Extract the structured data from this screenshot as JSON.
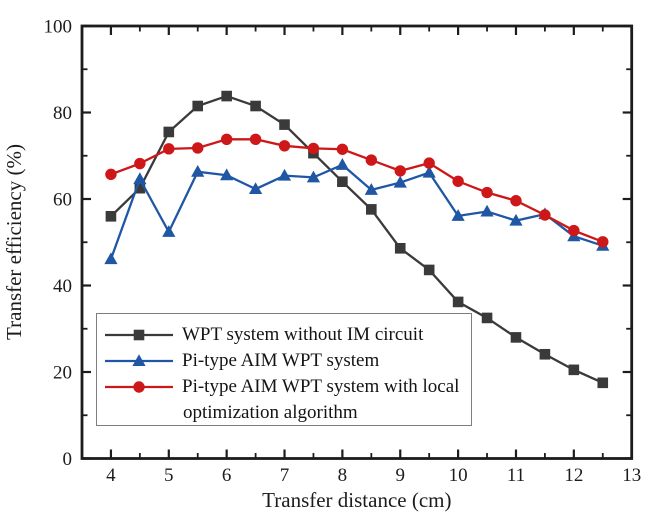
{
  "chart_data": {
    "type": "line",
    "title": "",
    "xlabel": "Transfer distance (cm)",
    "ylabel": "Transfer efficiency (%)",
    "xlim": [
      3.5,
      13
    ],
    "ylim": [
      0,
      100
    ],
    "grid": false,
    "legend_position": "lower-left-inside",
    "x_major_ticks": [
      4,
      5,
      6,
      7,
      8,
      9,
      10,
      11,
      12,
      13
    ],
    "x_tick_labels": [
      "4",
      "5",
      "6",
      "7",
      "8",
      "9",
      "10",
      "11",
      "12",
      "13"
    ],
    "x_minor_interval": 0.5,
    "y_major_ticks": [
      0,
      20,
      40,
      60,
      80,
      100
    ],
    "y_tick_labels": [
      "0",
      "20",
      "40",
      "60",
      "80",
      "100"
    ],
    "y_minor_interval": 10,
    "x": [
      4,
      4.5,
      5,
      5.5,
      6,
      6.5,
      7,
      7.5,
      8,
      8.5,
      9,
      9.5,
      10,
      10.5,
      11,
      11.5,
      12,
      12.5
    ],
    "series": [
      {
        "name": "WPT system without IM circuit",
        "marker": "square",
        "color": "#3a3a3a",
        "values": [
          56.0,
          62.5,
          75.5,
          81.5,
          83.8,
          81.5,
          77.2,
          70.6,
          64.0,
          57.6,
          48.6,
          43.6,
          36.2,
          32.5,
          28.0,
          24.1,
          20.5,
          17.5
        ]
      },
      {
        "name": "Pi-type AIM WPT system",
        "marker": "triangle",
        "color": "#1f57a5",
        "values": [
          46.1,
          64.6,
          52.4,
          66.3,
          65.5,
          62.3,
          65.4,
          65.0,
          67.9,
          62.1,
          63.8,
          66.1,
          56.1,
          57.1,
          55.0,
          56.5,
          51.4,
          49.2
        ]
      },
      {
        "name": "Pi-type AIM WPT system with local optimization algorithm",
        "marker": "circle",
        "color": "#cd1719",
        "values": [
          65.7,
          68.2,
          71.6,
          71.8,
          73.8,
          73.8,
          72.3,
          71.7,
          71.5,
          69.0,
          66.5,
          68.3,
          64.1,
          61.5,
          59.6,
          56.3,
          52.7,
          50.1
        ]
      }
    ]
  },
  "legend": {
    "items": [
      {
        "lines": [
          "WPT system without IM circuit"
        ]
      },
      {
        "lines": [
          "Pi-type AIM WPT system"
        ]
      },
      {
        "lines": [
          "Pi-type AIM WPT system with local",
          "optimization algorithm"
        ]
      }
    ]
  }
}
